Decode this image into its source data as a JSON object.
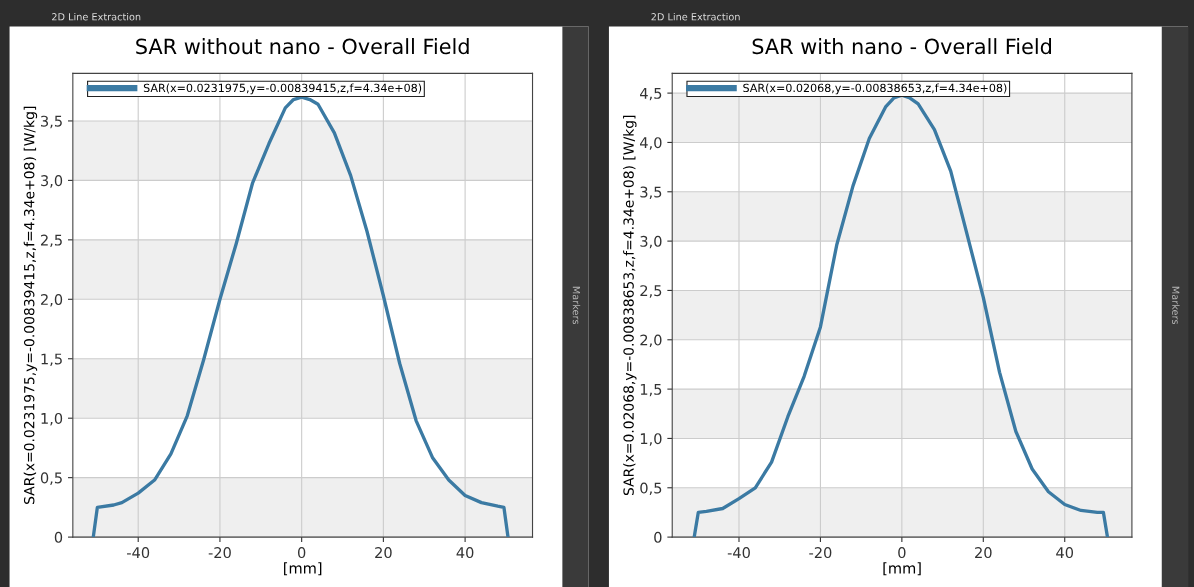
{
  "chart_data": [
    {
      "type": "line",
      "title": "SAR without nano - Overall Field",
      "xlabel": "[mm]",
      "ylabel": "SAR(x=0.0231975,y=-0.00839415,z,f=4.34e+08) [W/kg]",
      "annotations": [
        "2D Line Extraction",
        "Markers"
      ],
      "series": [
        {
          "name": "SAR(x=0.0231975,y=-0.00839415,z,f=4.34e+08)",
          "color": "#3b7aa3",
          "x": [
            -51,
            -50,
            -46,
            -44,
            -40,
            -36,
            -32,
            -28,
            -24,
            -20,
            -16,
            -12,
            -8,
            -4,
            -2,
            0,
            2,
            4,
            8,
            12,
            16,
            20,
            24,
            28,
            32,
            36,
            40,
            44,
            48,
            49.5,
            50.5
          ],
          "values": [
            0,
            0.25,
            0.27,
            0.29,
            0.37,
            0.48,
            0.7,
            1.02,
            1.49,
            2.0,
            2.47,
            2.98,
            3.31,
            3.61,
            3.68,
            3.7,
            3.68,
            3.64,
            3.4,
            3.04,
            2.57,
            2.03,
            1.46,
            0.98,
            0.67,
            0.48,
            0.35,
            0.29,
            0.26,
            0.25,
            0
          ]
        }
      ],
      "xlim": [
        -56,
        56.5
      ],
      "ylim": [
        0,
        3.9
      ],
      "xticks": [
        -40,
        -20,
        0,
        20,
        40
      ],
      "yticks": [
        0,
        {
          "value": 0.5,
          "label": "0,5"
        },
        {
          "value": 1.0,
          "label": "1,0"
        },
        {
          "value": 1.5,
          "label": "1,5"
        },
        {
          "value": 2.0,
          "label": "2,0"
        },
        {
          "value": 2.5,
          "label": "2,5"
        },
        {
          "value": 3.0,
          "label": "3,0"
        },
        {
          "value": 3.5,
          "label": "3,5"
        }
      ],
      "bands": [
        {
          "axis": "y",
          "from": 0,
          "to": 0.5,
          "color": "#efefef"
        },
        {
          "axis": "y",
          "from": 1.0,
          "to": 1.5,
          "color": "#efefef"
        },
        {
          "axis": "y",
          "from": 2.0,
          "to": 2.5,
          "color": "#efefef"
        },
        {
          "axis": "y",
          "from": 3.0,
          "to": 3.5,
          "color": "#efefef"
        }
      ],
      "grid": true,
      "legend": "top left",
      "line_style": "solid",
      "marker": "none"
    },
    {
      "type": "line",
      "title": "SAR with nano - Overall Field",
      "xlabel": "[mm]",
      "ylabel": "SAR(x=0.02068,y=-0.00838653,z,f=4.34e+08) [W/kg]",
      "annotations": [
        "2D Line Extraction",
        "Markers"
      ],
      "series": [
        {
          "name": "SAR(x=0.02068,y=-0.00838653,z,f=4.34e+08)",
          "color": "#3b7aa3",
          "x": [
            -51,
            -50,
            -48,
            -44,
            -40,
            -36,
            -32,
            -28,
            -24,
            -20,
            -16,
            -12,
            -8,
            -4,
            -2,
            0,
            2,
            4,
            8,
            12,
            16,
            20,
            24,
            28,
            32,
            36,
            40,
            44,
            48,
            49.5,
            50.5
          ],
          "values": [
            0,
            0.25,
            0.26,
            0.29,
            0.39,
            0.5,
            0.76,
            1.22,
            1.63,
            2.13,
            2.96,
            3.56,
            4.04,
            4.36,
            4.45,
            4.48,
            4.45,
            4.39,
            4.13,
            3.71,
            3.07,
            2.43,
            1.67,
            1.07,
            0.69,
            0.46,
            0.33,
            0.27,
            0.25,
            0.25,
            0
          ]
        }
      ],
      "xlim": [
        -56.4,
        56.5
      ],
      "ylim": [
        0,
        4.7
      ],
      "xticks": [
        -40,
        -20,
        0,
        20,
        40
      ],
      "yticks": [
        0,
        {
          "value": 0.5,
          "label": "0,5"
        },
        {
          "value": 1.0,
          "label": "1,0"
        },
        {
          "value": 1.5,
          "label": "1,5"
        },
        {
          "value": 2.0,
          "label": "2,0"
        },
        {
          "value": 2.5,
          "label": "2,5"
        },
        {
          "value": 3.0,
          "label": "3,0"
        },
        {
          "value": 3.5,
          "label": "3,5"
        },
        {
          "value": 4.0,
          "label": "4,0"
        },
        {
          "value": 4.5,
          "label": "4,5"
        }
      ],
      "bands": [
        {
          "axis": "y",
          "from": 0,
          "to": 0.5,
          "color": "#efefef"
        },
        {
          "axis": "y",
          "from": 1.0,
          "to": 1.5,
          "color": "#efefef"
        },
        {
          "axis": "y",
          "from": 2.0,
          "to": 2.5,
          "color": "#efefef"
        },
        {
          "axis": "y",
          "from": 3.0,
          "to": 3.5,
          "color": "#efefef"
        },
        {
          "axis": "y",
          "from": 4.0,
          "to": 4.5,
          "color": "#efefef"
        }
      ],
      "grid": true,
      "legend": "top left",
      "line_style": "solid",
      "marker": "none"
    }
  ]
}
